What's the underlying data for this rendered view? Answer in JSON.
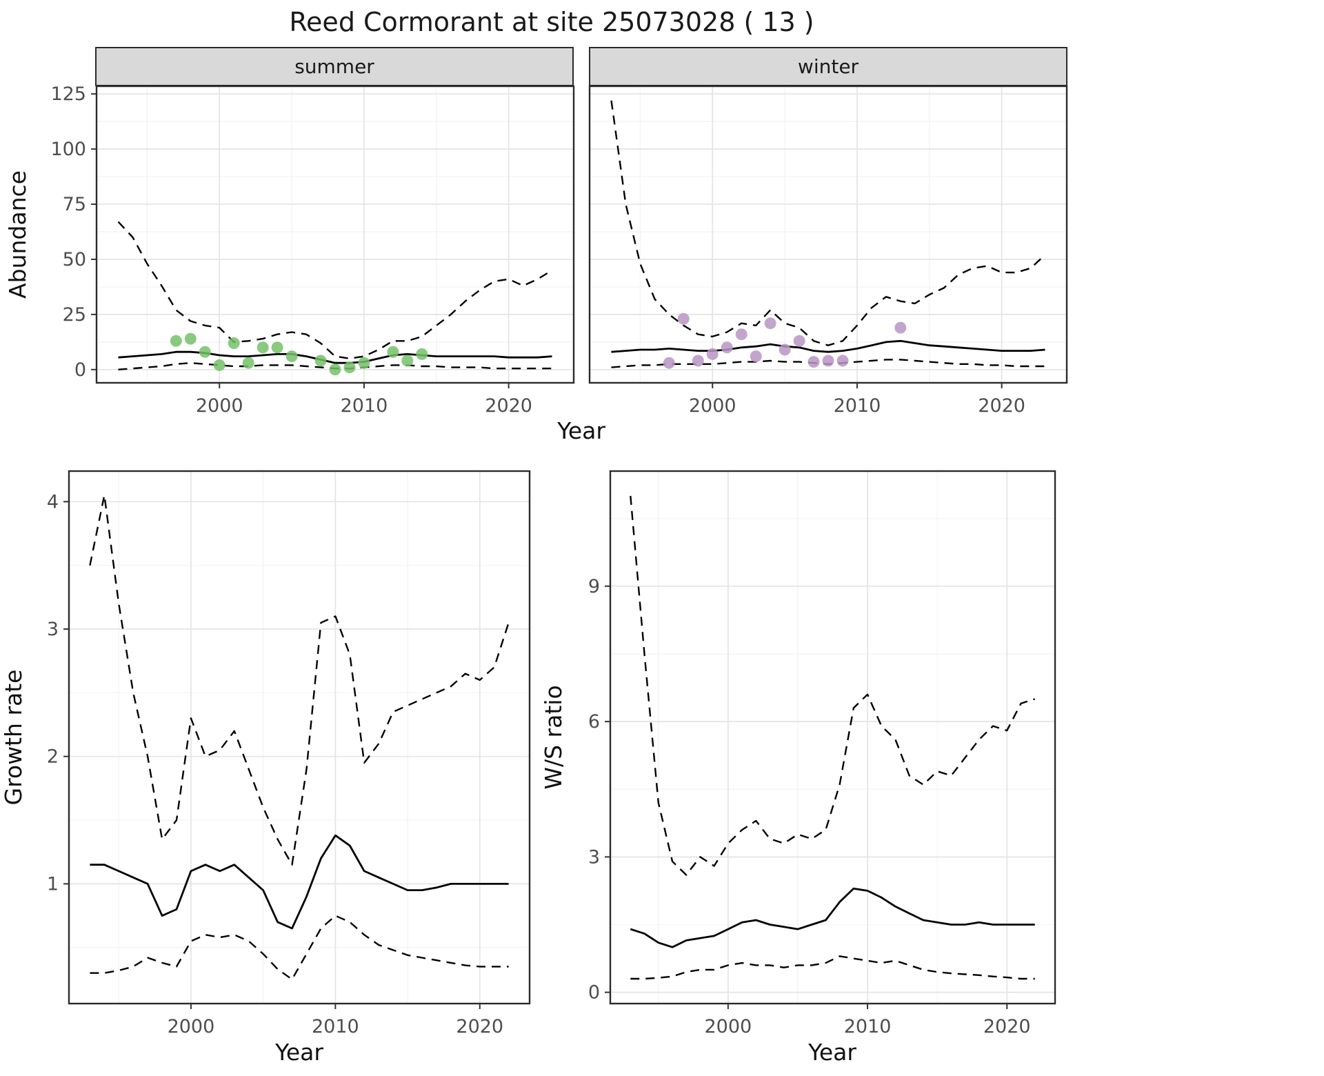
{
  "title": "Reed Cormorant at site 25073028 ( 13 )",
  "top": {
    "xlabel": "Year",
    "ylabel": "Abundance"
  },
  "colors": {
    "summer_points": "#75C168",
    "winter_points": "#B894C4",
    "line": "#000000",
    "grid_major": "#E4E4E4",
    "grid_minor": "#F2F2F2",
    "panel_border": "#2B2B2B",
    "strip_bg": "#D9D9D9",
    "tick_text": "#4D4D4D"
  },
  "chart_data": [
    {
      "id": "abundance_summer",
      "type": "line",
      "facet": "summer",
      "xlabel": "Year",
      "ylabel": "Abundance",
      "xticks": [
        2000,
        2010,
        2020
      ],
      "yticks": [
        0,
        25,
        50,
        75,
        100,
        125
      ],
      "xlim": [
        1991.5,
        2024.5
      ],
      "ylim": [
        -6,
        128.5
      ],
      "x": [
        1993,
        1994,
        1995,
        1996,
        1997,
        1998,
        1999,
        2000,
        2001,
        2002,
        2003,
        2004,
        2005,
        2006,
        2007,
        2008,
        2009,
        2010,
        2011,
        2012,
        2013,
        2014,
        2015,
        2016,
        2017,
        2018,
        2019,
        2020,
        2021,
        2022,
        2023
      ],
      "series": [
        {
          "name": "estimate",
          "style": "solid",
          "values": [
            5.5,
            6,
            6.5,
            7,
            8,
            8,
            7.5,
            6.5,
            6,
            6,
            6.5,
            7,
            7,
            6,
            4.5,
            3,
            3,
            3.5,
            5,
            6.5,
            7,
            6.5,
            6,
            6,
            6,
            6,
            6,
            5.5,
            5.5,
            5.5,
            6
          ]
        },
        {
          "name": "upper_ci",
          "style": "dashed",
          "values": [
            67,
            60,
            48,
            38,
            27,
            22,
            20,
            19,
            12.5,
            13,
            14,
            16,
            17,
            16,
            12,
            6,
            5,
            6,
            9,
            13,
            13,
            15,
            20,
            25,
            31,
            36,
            40,
            41,
            38,
            41,
            45
          ]
        },
        {
          "name": "lower_ci",
          "style": "dashed",
          "values": [
            0,
            0.5,
            1,
            1.5,
            2.5,
            3,
            2.5,
            2,
            1.5,
            1.5,
            2,
            2,
            2,
            1.5,
            1,
            0.5,
            0.5,
            1,
            1.5,
            2,
            2,
            1.5,
            1.5,
            1,
            1,
            1,
            0.5,
            0.5,
            0.5,
            0.5,
            0.5
          ]
        }
      ],
      "points": {
        "name": "observed_counts",
        "color_key": "summer_points",
        "x": [
          1997,
          1998,
          1999,
          2000,
          2001,
          2002,
          2003,
          2004,
          2005,
          2007,
          2008,
          2009,
          2010,
          2012,
          2013,
          2014
        ],
        "y": [
          13,
          14,
          8,
          2,
          12,
          3,
          10,
          10,
          6,
          4,
          0,
          1,
          3,
          8,
          4,
          7
        ]
      }
    },
    {
      "id": "abundance_winter",
      "type": "line",
      "facet": "winter",
      "xlabel": "Year",
      "ylabel": "Abundance",
      "xticks": [
        2000,
        2010,
        2020
      ],
      "yticks": [
        0,
        25,
        50,
        75,
        100,
        125
      ],
      "xlim": [
        1991.5,
        2024.5
      ],
      "ylim": [
        -6,
        128.5
      ],
      "x": [
        1993,
        1994,
        1995,
        1996,
        1997,
        1998,
        1999,
        2000,
        2001,
        2002,
        2003,
        2004,
        2005,
        2006,
        2007,
        2008,
        2009,
        2010,
        2011,
        2012,
        2013,
        2014,
        2015,
        2016,
        2017,
        2018,
        2019,
        2020,
        2021,
        2022,
        2023
      ],
      "series": [
        {
          "name": "estimate",
          "style": "solid",
          "values": [
            8,
            8.5,
            9,
            9,
            9.5,
            9,
            8.5,
            8.5,
            9,
            10,
            10.5,
            11.5,
            10.5,
            10,
            8.5,
            8,
            8.5,
            9.5,
            11,
            12.5,
            13,
            12,
            11,
            10.5,
            10,
            9.5,
            9,
            8.5,
            8.5,
            8.5,
            9
          ]
        },
        {
          "name": "upper_ci",
          "style": "dashed",
          "values": [
            122,
            75,
            48,
            32,
            25,
            20,
            16,
            15,
            17,
            21,
            20,
            27,
            21,
            19,
            13,
            11,
            13,
            20,
            28,
            33,
            31,
            30,
            34,
            37,
            43,
            46,
            47,
            44,
            44,
            46,
            52
          ]
        },
        {
          "name": "lower_ci",
          "style": "dashed",
          "values": [
            1,
            1.5,
            2,
            2,
            2.5,
            2.5,
            2.5,
            2.5,
            3,
            3.5,
            3.5,
            4,
            3.5,
            3.5,
            3,
            2.5,
            3,
            3.5,
            4,
            4.5,
            4.5,
            4,
            3.5,
            3,
            2.5,
            2.5,
            2,
            2,
            1.5,
            1.5,
            1.5
          ]
        }
      ],
      "points": {
        "name": "observed_counts",
        "color_key": "winter_points",
        "x": [
          1997,
          1998,
          1999,
          2000,
          2001,
          2002,
          2003,
          2004,
          2005,
          2006,
          2007,
          2008,
          2009,
          2013
        ],
        "y": [
          3,
          23,
          4,
          7,
          10,
          16,
          6,
          21,
          9,
          13,
          3.5,
          4,
          4,
          19
        ]
      }
    },
    {
      "id": "growth_rate",
      "type": "line",
      "facet": null,
      "xlabel": "Year",
      "ylabel": "Growth rate",
      "xticks": [
        2000,
        2010,
        2020
      ],
      "yticks": [
        1,
        2,
        3,
        4
      ],
      "xlim": [
        1991.55,
        2023.45
      ],
      "ylim": [
        0.06,
        4.24
      ],
      "x": [
        1993,
        1994,
        1995,
        1996,
        1997,
        1998,
        1999,
        2000,
        2001,
        2002,
        2003,
        2004,
        2005,
        2006,
        2007,
        2008,
        2009,
        2010,
        2011,
        2012,
        2013,
        2014,
        2015,
        2016,
        2017,
        2018,
        2019,
        2020,
        2021,
        2022
      ],
      "series": [
        {
          "name": "estimate",
          "style": "solid",
          "values": [
            1.15,
            1.15,
            1.1,
            1.05,
            1.0,
            0.75,
            0.8,
            1.1,
            1.15,
            1.1,
            1.15,
            1.05,
            0.95,
            0.7,
            0.65,
            0.9,
            1.2,
            1.38,
            1.3,
            1.1,
            1.05,
            1.0,
            0.95,
            0.95,
            0.97,
            1.0,
            1.0,
            1.0,
            1.0,
            1.0
          ]
        },
        {
          "name": "upper_ci",
          "style": "dashed",
          "values": [
            3.5,
            4.05,
            3.2,
            2.5,
            2.0,
            1.35,
            1.5,
            2.3,
            2.0,
            2.05,
            2.2,
            1.9,
            1.6,
            1.35,
            1.15,
            1.9,
            3.05,
            3.1,
            2.8,
            1.95,
            2.1,
            2.35,
            2.4,
            2.45,
            2.5,
            2.55,
            2.65,
            2.6,
            2.7,
            3.05
          ]
        },
        {
          "name": "lower_ci",
          "style": "dashed",
          "values": [
            0.3,
            0.3,
            0.32,
            0.35,
            0.42,
            0.38,
            0.35,
            0.55,
            0.6,
            0.58,
            0.6,
            0.55,
            0.45,
            0.33,
            0.25,
            0.45,
            0.65,
            0.75,
            0.7,
            0.6,
            0.52,
            0.48,
            0.44,
            0.42,
            0.4,
            0.38,
            0.36,
            0.35,
            0.35,
            0.35
          ]
        }
      ],
      "points": null
    },
    {
      "id": "ws_ratio",
      "type": "line",
      "facet": null,
      "xlabel": "Year",
      "ylabel": "W/S ratio",
      "xticks": [
        2000,
        2010,
        2020
      ],
      "yticks": [
        0,
        3,
        6,
        9
      ],
      "xlim": [
        1991.55,
        2023.45
      ],
      "ylim": [
        -0.25,
        11.55
      ],
      "x": [
        1993,
        1994,
        1995,
        1996,
        1997,
        1998,
        1999,
        2000,
        2001,
        2002,
        2003,
        2004,
        2005,
        2006,
        2007,
        2008,
        2009,
        2010,
        2011,
        2012,
        2013,
        2014,
        2015,
        2016,
        2017,
        2018,
        2019,
        2020,
        2021,
        2022
      ],
      "series": [
        {
          "name": "estimate",
          "style": "solid",
          "values": [
            1.4,
            1.3,
            1.1,
            1.0,
            1.15,
            1.2,
            1.25,
            1.4,
            1.55,
            1.6,
            1.5,
            1.45,
            1.4,
            1.5,
            1.6,
            2.0,
            2.3,
            2.25,
            2.1,
            1.9,
            1.75,
            1.6,
            1.55,
            1.5,
            1.5,
            1.55,
            1.5,
            1.5,
            1.5,
            1.5
          ]
        },
        {
          "name": "upper_ci",
          "style": "dashed",
          "values": [
            11.0,
            7.5,
            4.2,
            2.9,
            2.6,
            3.0,
            2.8,
            3.3,
            3.6,
            3.8,
            3.4,
            3.3,
            3.5,
            3.4,
            3.6,
            4.6,
            6.3,
            6.6,
            5.9,
            5.6,
            4.8,
            4.6,
            4.9,
            4.8,
            5.2,
            5.6,
            5.9,
            5.8,
            6.4,
            6.5
          ]
        },
        {
          "name": "lower_ci",
          "style": "dashed",
          "values": [
            0.3,
            0.3,
            0.32,
            0.35,
            0.45,
            0.5,
            0.5,
            0.6,
            0.65,
            0.6,
            0.6,
            0.55,
            0.6,
            0.6,
            0.65,
            0.8,
            0.75,
            0.7,
            0.65,
            0.7,
            0.6,
            0.5,
            0.45,
            0.42,
            0.4,
            0.38,
            0.35,
            0.33,
            0.3,
            0.3
          ]
        }
      ],
      "points": null
    }
  ]
}
